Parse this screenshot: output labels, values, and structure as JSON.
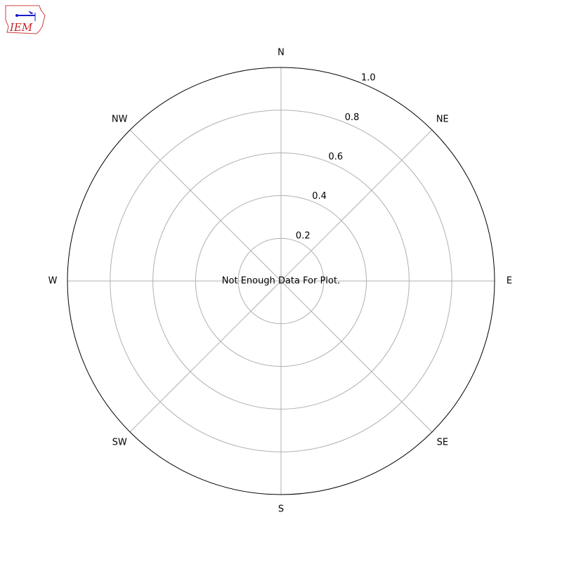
{
  "logo": {
    "text": "IEM",
    "outline_color": "#d04040",
    "text_color": "#cc2222",
    "icon_color": "#1a1acc"
  },
  "chart_data": {
    "type": "polar",
    "message": "Not Enough Data For Plot.",
    "direction_labels": [
      "N",
      "NE",
      "E",
      "SE",
      "S",
      "SW",
      "W",
      "NW"
    ],
    "radial_ticks": [
      0.2,
      0.4,
      0.6,
      0.8,
      1.0
    ],
    "radial_tick_labels": [
      "0.2",
      "0.4",
      "0.6",
      "0.8",
      "1.0"
    ],
    "rlim": [
      0,
      1.0
    ],
    "grid": true,
    "grid_color": "#b0b0b0",
    "series": []
  }
}
